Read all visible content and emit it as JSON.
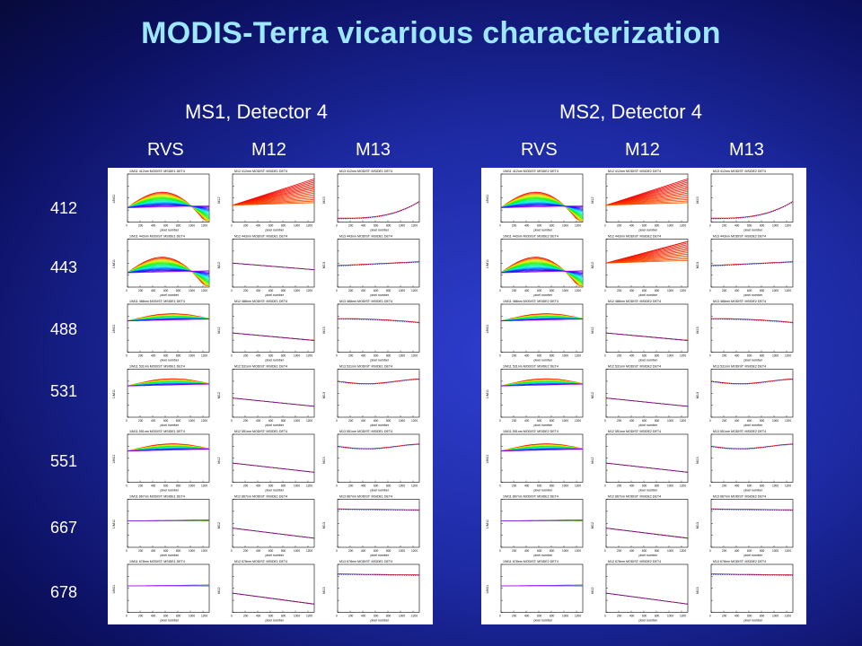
{
  "title": "MODIS-Terra vicarious characterization",
  "groups": [
    {
      "title": "MS1, Detector 4",
      "columns": [
        "RVS",
        "M12",
        "M13"
      ],
      "mirror": "MSIDE1"
    },
    {
      "title": "MS2, Detector 4",
      "columns": [
        "RVS",
        "M12",
        "M13"
      ],
      "mirror": "MSIDE2"
    }
  ],
  "bands": [
    "412",
    "443",
    "488",
    "531",
    "551",
    "667",
    "678"
  ],
  "plot_labels": {
    "x_axis": "pixel number",
    "x_ticks": [
      "0",
      "200",
      "400",
      "600",
      "800",
      "1000",
      "1200"
    ],
    "y_axis_rvs": "1/M11",
    "y_axis_m12": "M12",
    "y_axis_m13": "M13",
    "subtitle_rvs": "1/M11",
    "subtitle_m12": "M12",
    "subtitle_m13": "M13",
    "subtitle_suffix": "MODIST:",
    "detector": "DET4"
  },
  "colors": {
    "title": "#9ee8ff",
    "background_center": "#2f3fd0",
    "background_edge": "#070a3a"
  }
}
